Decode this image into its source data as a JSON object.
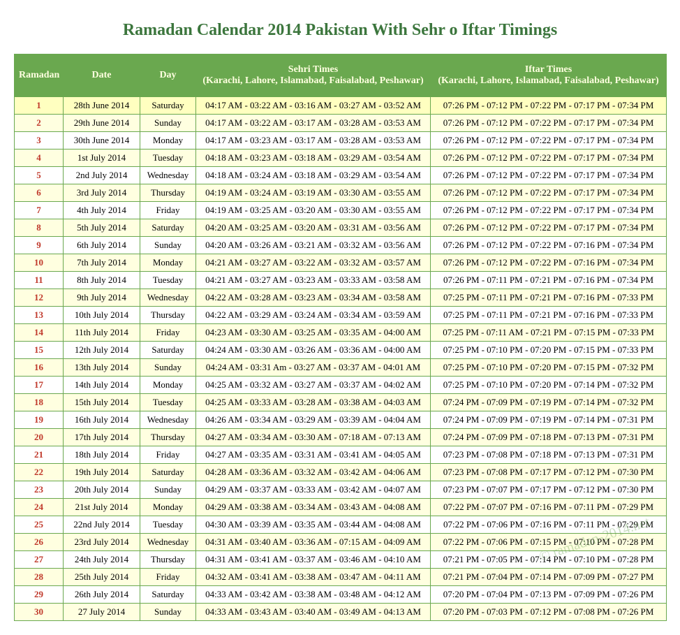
{
  "page": {
    "title": "Ramadan Calendar 2014 Pakistan With Sehr o Iftar Timings",
    "watermark": "© ramadan-2014.net"
  },
  "colors": {
    "header_bg": "#6aa84f",
    "header_text": "#ffffe0",
    "border": "#6aa84f",
    "alt_row_bg": "#ffffe0",
    "highlight_row_bg": "#ffffc0",
    "ramadan_number": "#c0392b",
    "title": "#3c763d"
  },
  "columns": [
    {
      "key": "ramadan",
      "label": "Ramadan"
    },
    {
      "key": "date",
      "label": "Date"
    },
    {
      "key": "day",
      "label": "Day"
    },
    {
      "key": "sehri",
      "label": "Sehri Times",
      "sub": "(Karachi, Lahore, Islamabad, Faisalabad, Peshawar)"
    },
    {
      "key": "iftar",
      "label": "Iftar Times",
      "sub": "(Karachi, Lahore, Islamabad, Faisalabad, Peshawar)"
    }
  ],
  "rows": [
    {
      "ramadan": "1",
      "date": "28th June 2014",
      "day": "Saturday",
      "sehri": "04:17 AM - 03:22 AM - 03:16 AM - 03:27 AM - 03:52 AM",
      "iftar": "07:26 PM - 07:12 PM - 07:22 PM - 07:17 PM - 07:34 PM"
    },
    {
      "ramadan": "2",
      "date": "29th June 2014",
      "day": "Sunday",
      "sehri": "04:17 AM - 03:22 AM - 03:17 AM - 03:28 AM - 03:53 AM",
      "iftar": "07:26 PM - 07:12 PM - 07:22 PM - 07:17 PM - 07:34 PM"
    },
    {
      "ramadan": "3",
      "date": "30th June 2014",
      "day": "Monday",
      "sehri": "04:17 AM - 03:23 AM - 03:17 AM - 03:28 AM - 03:53 AM",
      "iftar": "07:26 PM - 07:12 PM - 07:22 PM - 07:17 PM - 07:34 PM"
    },
    {
      "ramadan": "4",
      "date": "1st July 2014",
      "day": "Tuesday",
      "sehri": "04:18 AM - 03:23 AM - 03:18 AM - 03:29 AM - 03:54 AM",
      "iftar": "07:26 PM - 07:12 PM - 07:22 PM - 07:17 PM - 07:34 PM"
    },
    {
      "ramadan": "5",
      "date": "2nd July 2014",
      "day": "Wednesday",
      "sehri": "04:18 AM - 03:24 AM - 03:18 AM - 03:29 AM - 03:54 AM",
      "iftar": "07:26 PM - 07:12 PM - 07:22 PM - 07:17 PM - 07:34 PM"
    },
    {
      "ramadan": "6",
      "date": "3rd July 2014",
      "day": "Thursday",
      "sehri": "04:19 AM - 03:24 AM - 03:19 AM - 03:30 AM - 03:55 AM",
      "iftar": "07:26 PM - 07:12 PM - 07:22 PM - 07:17 PM - 07:34 PM"
    },
    {
      "ramadan": "7",
      "date": "4th July 2014",
      "day": "Friday",
      "sehri": "04:19 AM - 03:25 AM - 03:20 AM - 03:30 AM - 03:55 AM",
      "iftar": "07:26 PM - 07:12 PM - 07:22 PM - 07:17 PM - 07:34 PM"
    },
    {
      "ramadan": "8",
      "date": "5th July 2014",
      "day": "Saturday",
      "sehri": "04:20 AM - 03:25 AM - 03:20 AM - 03:31 AM - 03:56 AM",
      "iftar": "07:26 PM - 07:12 PM - 07:22 PM - 07:17 PM - 07:34 PM"
    },
    {
      "ramadan": "9",
      "date": "6th July 2014",
      "day": "Sunday",
      "sehri": "04:20 AM - 03:26 AM - 03:21 AM - 03:32 AM - 03:56 AM",
      "iftar": "07:26 PM - 07:12 PM - 07:22 PM - 07:16 PM - 07:34 PM"
    },
    {
      "ramadan": "10",
      "date": "7th July 2014",
      "day": "Monday",
      "sehri": "04:21 AM - 03:27 AM - 03:22 AM - 03:32 AM - 03:57 AM",
      "iftar": "07:26 PM - 07:12 PM - 07:22 PM - 07:16 PM - 07:34 PM"
    },
    {
      "ramadan": "11",
      "date": "8th July 2014",
      "day": "Tuesday",
      "sehri": "04:21 AM - 03:27 AM - 03:23 AM - 03:33 AM - 03:58 AM",
      "iftar": "07:26 PM - 07:11 PM - 07:21 PM - 07:16 PM - 07:34 PM"
    },
    {
      "ramadan": "12",
      "date": "9th July 2014",
      "day": "Wednesday",
      "sehri": "04:22 AM - 03:28 AM - 03:23 AM - 03:34 AM - 03:58 AM",
      "iftar": "07:25 PM - 07:11 PM - 07:21 PM - 07:16 PM - 07:33 PM"
    },
    {
      "ramadan": "13",
      "date": "10th July 2014",
      "day": "Thursday",
      "sehri": "04:22 AM - 03:29 AM - 03:24 AM - 03:34 AM - 03:59 AM",
      "iftar": "07:25 PM - 07:11 PM - 07:21 PM - 07:16 PM - 07:33 PM"
    },
    {
      "ramadan": "14",
      "date": "11th July 2014",
      "day": "Friday",
      "sehri": "04:23 AM - 03:30 AM - 03:25 AM - 03:35 AM - 04:00 AM",
      "iftar": "07:25 PM - 07:11 AM - 07:21 PM - 07:15 PM - 07:33 PM"
    },
    {
      "ramadan": "15",
      "date": "12th July 2014",
      "day": "Saturday",
      "sehri": "04:24 AM - 03:30 AM - 03:26 AM - 03:36 AM - 04:00 AM",
      "iftar": "07:25 PM - 07:10 PM - 07:20 PM - 07:15 PM - 07:33 PM"
    },
    {
      "ramadan": "16",
      "date": "13th July 2014",
      "day": "Sunday",
      "sehri": "04:24 AM - 03:31 Am - 03:27 AM - 03:37 AM - 04:01 AM",
      "iftar": "07:25 PM - 07:10 PM - 07:20 PM - 07:15 PM - 07:32 PM"
    },
    {
      "ramadan": "17",
      "date": "14th July 2014",
      "day": "Monday",
      "sehri": "04:25 AM - 03:32 AM - 03:27 AM - 03:37 AM - 04:02 AM",
      "iftar": "07:25 PM - 07:10 PM - 07:20 PM - 07:14 PM - 07:32 PM"
    },
    {
      "ramadan": "18",
      "date": "15th July 2014",
      "day": "Tuesday",
      "sehri": "04:25 AM - 03:33 AM - 03:28 AM - 03:38 AM - 04:03 AM",
      "iftar": "07:24 PM - 07:09 PM - 07:19 PM - 07:14 PM - 07:32 PM"
    },
    {
      "ramadan": "19",
      "date": "16th July 2014",
      "day": "Wednesday",
      "sehri": "04:26 AM - 03:34 AM - 03:29 AM - 03:39 AM - 04:04 AM",
      "iftar": "07:24 PM - 07:09 PM - 07:19 PM - 07:14 PM - 07:31 PM"
    },
    {
      "ramadan": "20",
      "date": "17th July 2014",
      "day": "Thursday",
      "sehri": "04:27 AM - 03:34 AM - 03:30 AM - 07:18 AM - 07:13 AM",
      "iftar": "07:24 PM - 07:09 PM - 07:18 PM - 07:13 PM - 07:31 PM"
    },
    {
      "ramadan": "21",
      "date": "18th July 2014",
      "day": "Friday",
      "sehri": "04:27 AM - 03:35 AM - 03:31 AM - 03:41 AM - 04:05 AM",
      "iftar": "07:23 PM - 07:08 PM - 07:18 PM - 07:13 PM - 07:31 PM"
    },
    {
      "ramadan": "22",
      "date": "19th July 2014",
      "day": "Saturday",
      "sehri": "04:28 AM - 03:36 AM - 03:32 AM - 03:42 AM - 04:06 AM",
      "iftar": "07:23 PM - 07:08 PM - 07:17 PM - 07:12 PM - 07:30 PM"
    },
    {
      "ramadan": "23",
      "date": "20th July 2014",
      "day": "Sunday",
      "sehri": "04:29 AM - 03:37 AM - 03:33 AM - 03:42 AM - 04:07 AM",
      "iftar": "07:23 PM - 07:07 PM - 07:17 PM - 07:12 PM - 07:30 PM"
    },
    {
      "ramadan": "24",
      "date": "21st July 2014",
      "day": "Monday",
      "sehri": "04:29 AM - 03:38 AM - 03:34 AM - 03:43 AM - 04:08 AM",
      "iftar": "07:22 PM - 07:07 PM - 07:16 PM - 07:11 PM - 07:29 PM"
    },
    {
      "ramadan": "25",
      "date": "22nd July 2014",
      "day": "Tuesday",
      "sehri": "04:30 AM - 03:39 AM - 03:35 AM - 03:44 AM - 04:08 AM",
      "iftar": "07:22 PM - 07:06 PM - 07:16 PM - 07:11 PM - 07:29 PM"
    },
    {
      "ramadan": "26",
      "date": "23rd July 2014",
      "day": "Wednesday",
      "sehri": "04:31 AM - 03:40 AM - 03:36 AM - 07:15 AM - 04:09 AM",
      "iftar": "07:22 PM - 07:06 PM - 07:15 PM - 07:10 PM - 07:28 PM"
    },
    {
      "ramadan": "27",
      "date": "24th July 2014",
      "day": "Thursday",
      "sehri": "04:31 AM - 03:41 AM - 03:37 AM - 03:46 AM - 04:10 AM",
      "iftar": "07:21 PM - 07:05 PM - 07:14 PM - 07:10 PM - 07:28 PM"
    },
    {
      "ramadan": "28",
      "date": "25th July 2014",
      "day": "Friday",
      "sehri": "04:32 AM - 03:41 AM - 03:38 AM - 03:47 AM - 04:11 AM",
      "iftar": "07:21 PM - 07:04 PM - 07:14 PM - 07:09 PM - 07:27 PM"
    },
    {
      "ramadan": "29",
      "date": "26th July 2014",
      "day": "Saturday",
      "sehri": "04:33 AM - 03:42 AM - 03:38 AM - 03:48 AM - 04:12 AM",
      "iftar": "07:20 PM - 07:04 PM - 07:13 PM - 07:09 PM - 07:26 PM"
    },
    {
      "ramadan": "30",
      "date": "27 July 2014",
      "day": "Sunday",
      "sehri": "04:33 AM - 03:43 AM - 03:40 AM - 03:49 AM - 04:13 AM",
      "iftar": "07:20 PM - 07:03 PM - 07:12 PM - 07:08 PM - 07:26 PM"
    }
  ]
}
